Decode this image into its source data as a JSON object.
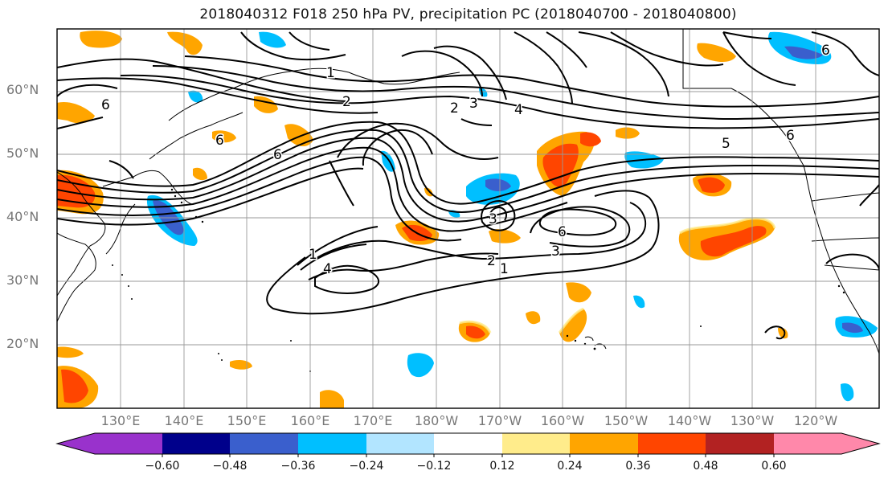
{
  "title": "2018040312 F018 250 hPa PV, precipitation PC (2018040700 - 2018040800)",
  "lat_labels": [
    "60°N",
    "50°N",
    "40°N",
    "30°N",
    "20°N"
  ],
  "lon_labels": [
    "130°E",
    "140°E",
    "150°E",
    "160°E",
    "170°E",
    "180°W",
    "170°W",
    "160°W",
    "150°W",
    "140°W",
    "130°W",
    "120°W"
  ],
  "contour_labels": [
    "1",
    "2",
    "3",
    "4",
    "5",
    "6",
    "1",
    "2",
    "3",
    "4",
    "6",
    "1",
    "2",
    "3",
    "6",
    "6",
    "6",
    "6"
  ],
  "colorbar": {
    "ticks": [
      "−0.60",
      "−0.48",
      "−0.36",
      "−0.24",
      "−0.12",
      "0.12",
      "0.24",
      "0.36",
      "0.48",
      "0.60"
    ],
    "colors": [
      "#9932cc",
      "#00008b",
      "#3a5fcd",
      "#00bfff",
      "#b2e5ff",
      "#ffffff",
      "#ffec8b",
      "#ffa500",
      "#ff4500",
      "#b22222",
      "#ff88aa"
    ]
  },
  "colors": {
    "land_outline": "#000000",
    "grid": "#999999",
    "contour": "#000000"
  }
}
